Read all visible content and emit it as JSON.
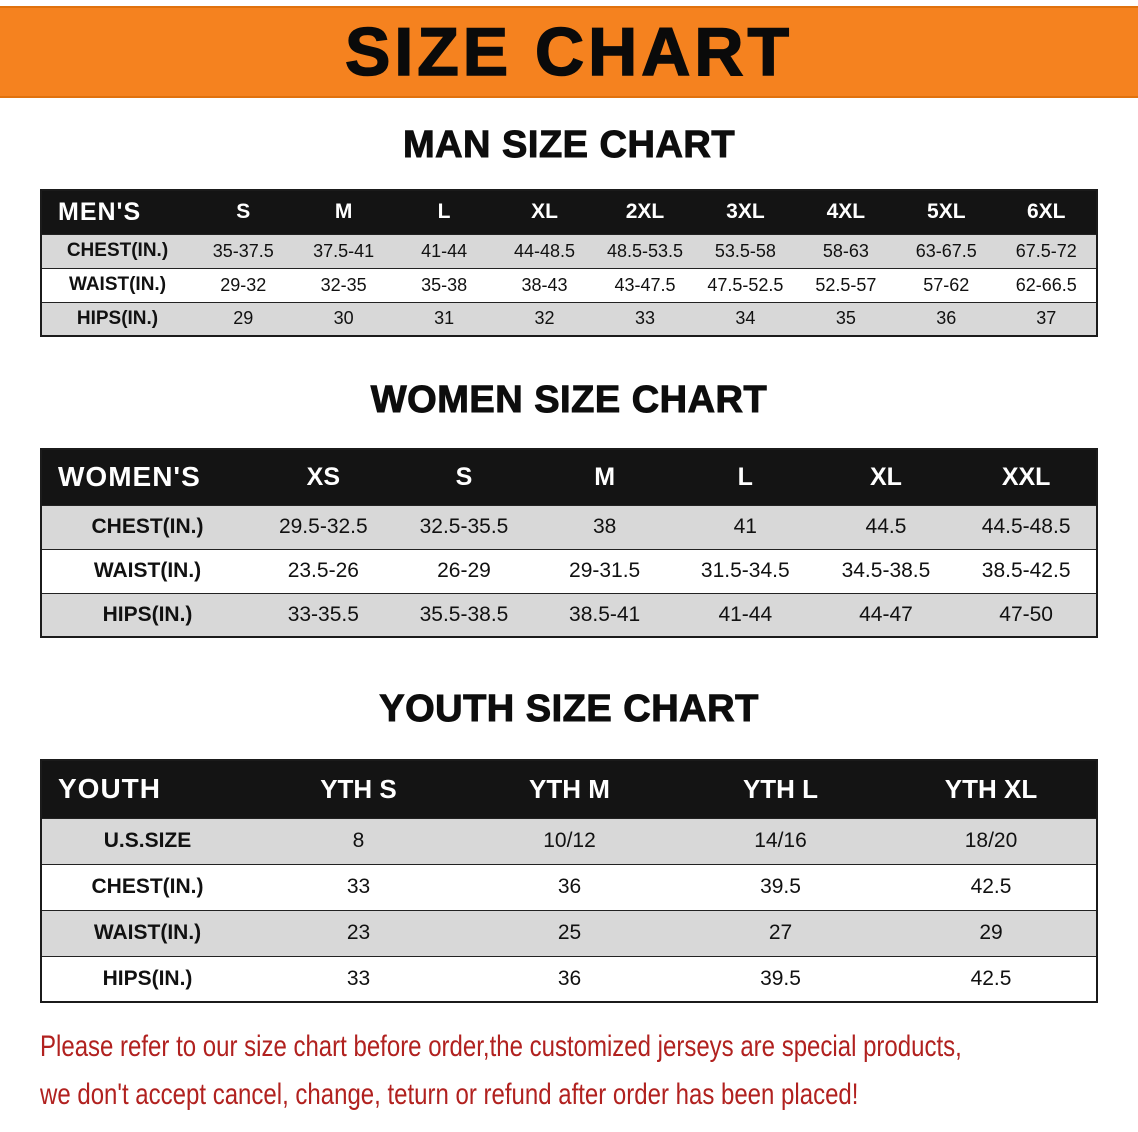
{
  "colors": {
    "banner_bg": "#f5821f",
    "header_bg": "#141414",
    "shaded_row": "#d8d8d8",
    "footer_text": "#b1211f"
  },
  "banner": {
    "title": "SIZE CHART"
  },
  "sections": [
    {
      "id": "men",
      "heading": "MAN SIZE CHART",
      "header": [
        "MEN'S",
        "S",
        "M",
        "L",
        "XL",
        "2XL",
        "3XL",
        "4XL",
        "5XL",
        "6XL"
      ],
      "rows": [
        {
          "label": "CHEST(IN.)",
          "values": [
            "35-37.5",
            "37.5-41",
            "41-44",
            "44-48.5",
            "48.5-53.5",
            "53.5-58",
            "58-63",
            "63-67.5",
            "67.5-72"
          ]
        },
        {
          "label": "WAIST(IN.)",
          "values": [
            "29-32",
            "32-35",
            "35-38",
            "38-43",
            "43-47.5",
            "47.5-52.5",
            "52.5-57",
            "57-62",
            "62-66.5"
          ]
        },
        {
          "label": "HIPS(IN.)",
          "values": [
            "29",
            "30",
            "31",
            "32",
            "33",
            "34",
            "35",
            "36",
            "37"
          ]
        }
      ]
    },
    {
      "id": "women",
      "heading": "WOMEN SIZE CHART",
      "header": [
        "WOMEN'S",
        "XS",
        "S",
        "M",
        "L",
        "XL",
        "XXL"
      ],
      "rows": [
        {
          "label": "CHEST(IN.)",
          "values": [
            "29.5-32.5",
            "32.5-35.5",
            "38",
            "41",
            "44.5",
            "44.5-48.5"
          ]
        },
        {
          "label": "WAIST(IN.)",
          "values": [
            "23.5-26",
            "26-29",
            "29-31.5",
            "31.5-34.5",
            "34.5-38.5",
            "38.5-42.5"
          ]
        },
        {
          "label": "HIPS(IN.)",
          "values": [
            "33-35.5",
            "35.5-38.5",
            "38.5-41",
            "41-44",
            "44-47",
            "47-50"
          ]
        }
      ]
    },
    {
      "id": "youth",
      "heading": "YOUTH SIZE CHART",
      "header": [
        "YOUTH",
        "YTH S",
        "YTH M",
        "YTH L",
        "YTH XL"
      ],
      "rows": [
        {
          "label": "U.S.SIZE",
          "values": [
            "8",
            "10/12",
            "14/16",
            "18/20"
          ]
        },
        {
          "label": "CHEST(IN.)",
          "values": [
            "33",
            "36",
            "39.5",
            "42.5"
          ]
        },
        {
          "label": "WAIST(IN.)",
          "values": [
            "23",
            "25",
            "27",
            "29"
          ]
        },
        {
          "label": "HIPS(IN.)",
          "values": [
            "33",
            "36",
            "39.5",
            "42.5"
          ]
        }
      ]
    }
  ],
  "footer": {
    "line1": "Please refer to our size chart before order,the customized jerseys are special products,",
    "line2": "we don't accept cancel, change, teturn or refund after order has been placed!"
  }
}
